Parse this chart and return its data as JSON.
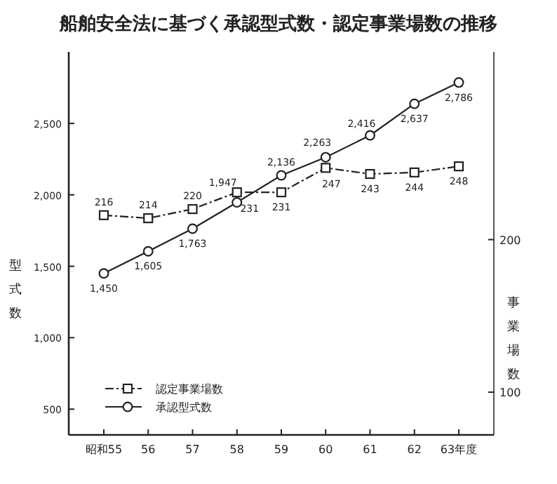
{
  "chart_data": {
    "type": "line",
    "title": "船舶安全法に基づく承認型式数・認定事業場数の推移",
    "categories": [
      "昭和55",
      "56",
      "57",
      "58",
      "59",
      "60",
      "61",
      "62",
      "63年度"
    ],
    "series": [
      {
        "name": "認定事業場数",
        "color": "#222222",
        "axis": "y2",
        "marker": "square",
        "line_style": "dashdot",
        "values": [
          216,
          214,
          220,
          231,
          231,
          247,
          243,
          244,
          248
        ],
        "value_labels": [
          "216",
          "214",
          "220",
          "231",
          "231",
          "247",
          "243",
          "244",
          "248"
        ]
      },
      {
        "name": "承認型式数",
        "color": "#222222",
        "marker": "circle",
        "line_style": "solid",
        "values": [
          1450,
          1605,
          1763,
          1947,
          2136,
          2263,
          2416,
          2637,
          2786
        ],
        "value_labels": [
          "1,450",
          "1,605",
          "1,763",
          "1,947",
          "2,136",
          "2,263",
          "2,416",
          "2,637",
          "2,786"
        ]
      }
    ],
    "ylabel": "型式数",
    "y2label": "事業場数",
    "ylim": [
      320,
      3000
    ],
    "yticks": [
      500,
      {
        "value": 1000,
        "label": "1,000"
      },
      {
        "value": 1500,
        "label": "1,500"
      },
      {
        "value": 2000,
        "label": "2,000"
      },
      {
        "value": 2500,
        "label": "2,500"
      }
    ],
    "y2lim": [
      72,
      323
    ],
    "y2ticks": [
      100,
      200
    ],
    "legend": "bottom left",
    "grid": false
  }
}
